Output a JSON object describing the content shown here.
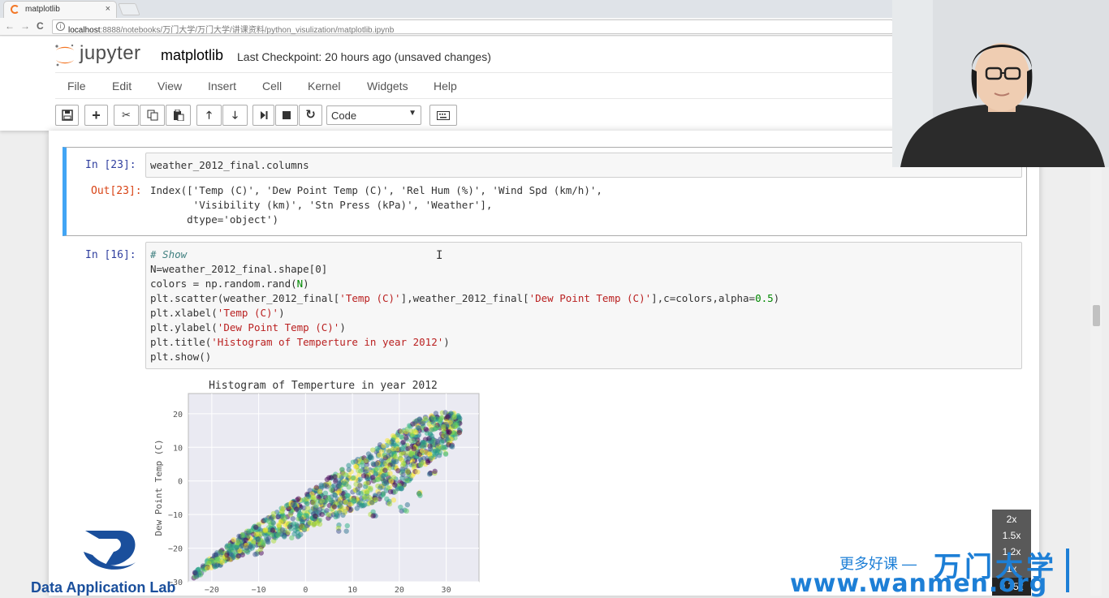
{
  "browser": {
    "tab_title": "matplotlib",
    "tab_close": "×",
    "back_glyph": "←",
    "forward_glyph": "→",
    "reload_glyph": "C",
    "info_glyph": "i",
    "url_host": "localhost",
    "url_path": ":8888/notebooks/万门大学/万门大学/讲课资料/python_visulization/matplotlib.ipynb"
  },
  "jupyter": {
    "logo_text": "jupyter",
    "notebook_name": "matplotlib",
    "checkpoint": "Last Checkpoint: 20 hours ago (unsaved changes)",
    "menu": [
      "File",
      "Edit",
      "View",
      "Insert",
      "Cell",
      "Kernel",
      "Widgets",
      "Help"
    ],
    "toolbar": {
      "save_icon": "floppy-icon",
      "add_icon": "plus-icon",
      "cut_icon": "scissors-icon",
      "copy_icon": "copy-icon",
      "paste_icon": "paste-icon",
      "up_icon": "arrow-up-icon",
      "down_icon": "arrow-down-icon",
      "run_icon": "step-forward-icon",
      "stop_icon": "stop-icon",
      "restart_icon": "restart-icon",
      "keyboard_icon": "keyboard-icon",
      "cell_type": "Code"
    }
  },
  "cells": {
    "c23": {
      "in_prompt": "In  [23]:",
      "code": "weather_2012_final.columns",
      "out_prompt": "Out[23]:",
      "output": [
        "Index(['Temp (C)', 'Dew Point Temp (C)', 'Rel Hum (%)', 'Wind Spd (km/h)',",
        "       'Visibility (km)', 'Stn Press (kPa)', 'Weather'],",
        "      dtype='object')"
      ]
    },
    "c16": {
      "in_prompt": "In  [16]:",
      "code": {
        "l1": "# Show",
        "l2": "N=weather_2012_final.shape[0]",
        "l3a": "colors = np.random.rand(",
        "l3b": "N",
        "l3c": ")",
        "l4a": "plt.scatter(weather_2012_final[",
        "l4b": "'Temp (C)'",
        "l4c": "],weather_2012_final[",
        "l4d": "'Dew Point Temp (C)'",
        "l4e": "],c=colors,alpha=",
        "l4f": "0.5",
        "l4g": ")",
        "l5a": "plt.xlabel(",
        "l5b": "'Temp (C)'",
        "l5c": ")",
        "l6a": "plt.ylabel(",
        "l6b": "'Dew Point Temp (C)'",
        "l6c": ")",
        "l7a": "plt.title(",
        "l7b": "'Histogram of Temperture in year 2012'",
        "l7c": ")",
        "l8": "plt.show()"
      }
    }
  },
  "chart_data": {
    "type": "scatter",
    "title": "Histogram of Temperture in year 2012",
    "xlabel": "",
    "ylabel": "Dew Point Temp (C)",
    "xlim": [
      -25,
      37
    ],
    "ylim": [
      -30,
      26
    ],
    "xticks": [
      -20,
      -10,
      0,
      10,
      20,
      30
    ],
    "yticks": [
      -30,
      -20,
      -10,
      0,
      10,
      20
    ],
    "grid": true,
    "background": "#eaeaf2",
    "colormap": "viridis",
    "alpha": 0.5,
    "band_lower": [
      [
        -24,
        -29
      ],
      [
        -15,
        -23
      ],
      [
        -5,
        -17
      ],
      [
        5,
        -12
      ],
      [
        15,
        -6
      ],
      [
        20,
        -3
      ],
      [
        25,
        4
      ],
      [
        30,
        10
      ],
      [
        33,
        14
      ]
    ],
    "band_upper": [
      [
        -24,
        -27
      ],
      [
        -15,
        -17
      ],
      [
        -5,
        -8
      ],
      [
        5,
        1
      ],
      [
        15,
        10
      ],
      [
        20,
        15
      ],
      [
        25,
        19
      ],
      [
        30,
        21
      ],
      [
        33,
        20
      ]
    ],
    "outliers": [
      [
        -2,
        -16
      ],
      [
        8,
        -14
      ],
      [
        14,
        -10
      ],
      [
        21,
        -8
      ],
      [
        24,
        -4
      ],
      [
        27,
        2
      ],
      [
        29,
        8
      ],
      [
        31,
        11
      ],
      [
        -10,
        -21
      ],
      [
        18,
        -6
      ]
    ]
  },
  "speed_menu": {
    "options": [
      "2x",
      "1.5x",
      "1.2x",
      "1x",
      "0.75x"
    ],
    "selected": "0.75x"
  },
  "watermark": {
    "lab_name": "Data Application Lab",
    "cn_tagline": "更多好课 —",
    "brand": "万门大学",
    "url": "www.wanmen.org"
  },
  "colors": {
    "accent": "#42a5f5",
    "jupyter_orange": "#f37726",
    "watermark_blue": "#1d7fd6"
  }
}
